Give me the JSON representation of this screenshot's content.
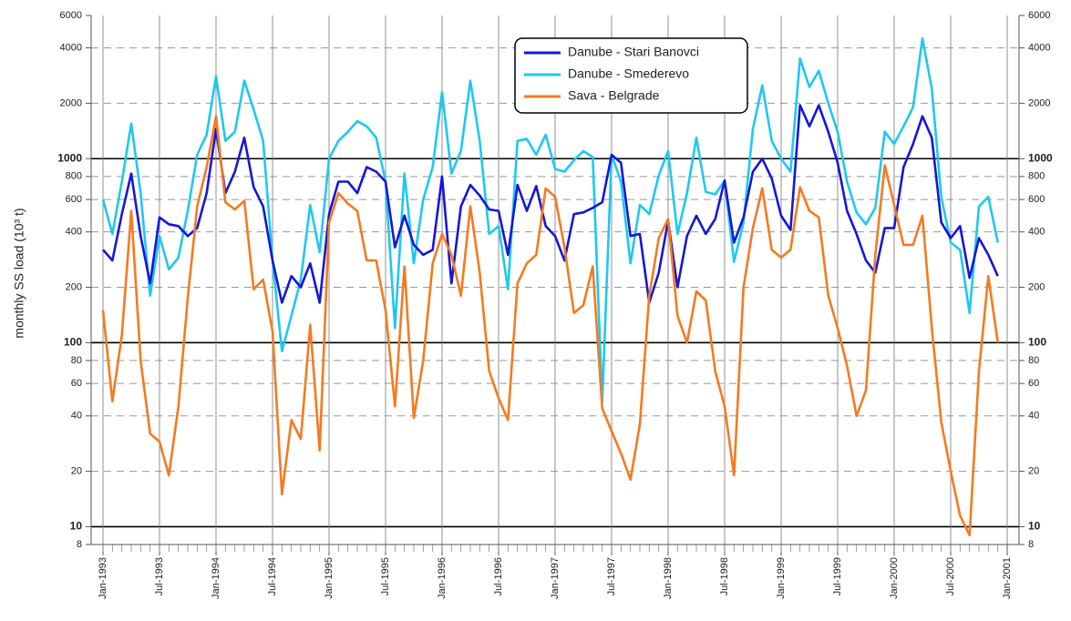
{
  "chart_data": {
    "type": "line",
    "y_label": "monthly SS load (10³ t)",
    "log_scale": true,
    "grid": true,
    "legend_position": "top",
    "x": [
      "1993-01",
      "1993-02",
      "1993-03",
      "1993-04",
      "1993-05",
      "1993-06",
      "1993-07",
      "1993-08",
      "1993-09",
      "1993-10",
      "1993-11",
      "1993-12",
      "1994-01",
      "1994-02",
      "1994-03",
      "1994-04",
      "1994-05",
      "1994-06",
      "1994-07",
      "1994-08",
      "1994-09",
      "1994-10",
      "1994-11",
      "1994-12",
      "1995-01",
      "1995-02",
      "1995-03",
      "1995-04",
      "1995-05",
      "1995-06",
      "1995-07",
      "1995-08",
      "1995-09",
      "1995-10",
      "1995-11",
      "1995-12",
      "1996-01",
      "1996-02",
      "1996-03",
      "1996-04",
      "1996-05",
      "1996-06",
      "1996-07",
      "1996-08",
      "1996-09",
      "1996-10",
      "1996-11",
      "1996-12",
      "1997-01",
      "1997-02",
      "1997-03",
      "1997-04",
      "1997-05",
      "1997-06",
      "1997-07",
      "1997-08",
      "1997-09",
      "1997-10",
      "1997-11",
      "1997-12",
      "1998-01",
      "1998-02",
      "1998-03",
      "1998-04",
      "1998-05",
      "1998-06",
      "1998-07",
      "1998-08",
      "1998-09",
      "1998-10",
      "1998-11",
      "1998-12",
      "1999-01",
      "1999-02",
      "1999-03",
      "1999-04",
      "1999-05",
      "1999-06",
      "1999-07",
      "1999-08",
      "1999-09",
      "1999-10",
      "1999-11",
      "1999-12",
      "2000-01",
      "2000-02",
      "2000-03",
      "2000-04",
      "2000-05",
      "2000-06",
      "2000-07",
      "2000-08",
      "2000-09",
      "2000-10",
      "2000-11",
      "2000-12"
    ],
    "xticks": [
      {
        "value": "1993-01",
        "label": "Jan-1993"
      },
      {
        "value": "1993-07",
        "label": "Jul-1993"
      },
      {
        "value": "1994-01",
        "label": "Jan-1994"
      },
      {
        "value": "1994-07",
        "label": "Jul-1994"
      },
      {
        "value": "1995-01",
        "label": "Jan-1995"
      },
      {
        "value": "1995-07",
        "label": "Jul-1995"
      },
      {
        "value": "1996-01",
        "label": "Jan-1996"
      },
      {
        "value": "1996-07",
        "label": "Jul-1996"
      },
      {
        "value": "1997-01",
        "label": "Jan-1997"
      },
      {
        "value": "1997-07",
        "label": "Jul-1997"
      },
      {
        "value": "1998-01",
        "label": "Jan-1998"
      },
      {
        "value": "1998-07",
        "label": "Jul-1998"
      },
      {
        "value": "1999-01",
        "label": "Jan-1999"
      },
      {
        "value": "1999-07",
        "label": "Jul-1999"
      },
      {
        "value": "2000-01",
        "label": "Jan-2000"
      },
      {
        "value": "2000-07",
        "label": "Jul-2000"
      },
      {
        "value": "2001-01",
        "label": "Jan-2001"
      }
    ],
    "ylim": [
      8,
      6000
    ],
    "yticks": [
      8,
      10,
      20,
      40,
      60,
      80,
      100,
      200,
      400,
      600,
      800,
      1000,
      2000,
      4000,
      6000
    ],
    "series": [
      {
        "name": "Danube - Stari Banovci",
        "color": "#1616d8",
        "values": [
          320,
          280,
          500,
          830,
          380,
          210,
          480,
          440,
          430,
          380,
          420,
          650,
          1450,
          650,
          850,
          1300,
          700,
          550,
          280,
          165,
          230,
          200,
          270,
          165,
          500,
          750,
          750,
          650,
          900,
          850,
          750,
          330,
          490,
          340,
          300,
          320,
          800,
          210,
          550,
          720,
          630,
          530,
          520,
          300,
          720,
          520,
          710,
          430,
          380,
          280,
          500,
          510,
          540,
          580,
          1050,
          950,
          380,
          390,
          165,
          240,
          460,
          200,
          380,
          490,
          390,
          470,
          760,
          350,
          480,
          850,
          1000,
          780,
          490,
          410,
          1950,
          1500,
          1950,
          1400,
          950,
          520,
          390,
          280,
          240,
          420,
          420,
          900,
          1200,
          1700,
          1300,
          450,
          370,
          430,
          225,
          370,
          300,
          230
        ]
      },
      {
        "name": "Danube - Smederevo",
        "color": "#1ec8f0",
        "values": [
          600,
          390,
          750,
          1550,
          650,
          180,
          380,
          250,
          290,
          520,
          1050,
          1350,
          2800,
          1250,
          1400,
          2650,
          1850,
          1250,
          280,
          90,
          140,
          220,
          560,
          310,
          1000,
          1250,
          1400,
          1600,
          1500,
          1300,
          750,
          120,
          830,
          270,
          600,
          900,
          2300,
          830,
          1100,
          2650,
          1250,
          390,
          430,
          195,
          1250,
          1280,
          1050,
          1350,
          880,
          850,
          980,
          1100,
          1020,
          48,
          1050,
          750,
          270,
          560,
          500,
          810,
          1100,
          390,
          650,
          1300,
          660,
          640,
          760,
          275,
          450,
          1450,
          2500,
          1250,
          1000,
          850,
          3500,
          2450,
          3000,
          2000,
          1400,
          750,
          510,
          440,
          540,
          1400,
          1200,
          1500,
          1900,
          4500,
          2400,
          620,
          350,
          320,
          145,
          550,
          620,
          350
        ]
      },
      {
        "name": "Sava - Belgrade",
        "color": "#f57a20",
        "values": [
          150,
          48,
          110,
          520,
          80,
          32,
          29,
          19,
          45,
          175,
          550,
          900,
          1700,
          580,
          530,
          590,
          195,
          220,
          115,
          15,
          38,
          30,
          125,
          26,
          450,
          650,
          570,
          520,
          280,
          280,
          150,
          45,
          260,
          39,
          80,
          270,
          390,
          300,
          180,
          550,
          240,
          70,
          50,
          38,
          210,
          270,
          300,
          690,
          620,
          330,
          145,
          160,
          260,
          44,
          33,
          25,
          18,
          36,
          180,
          370,
          470,
          140,
          100,
          190,
          170,
          70,
          45,
          19,
          200,
          420,
          690,
          320,
          290,
          320,
          700,
          520,
          480,
          180,
          120,
          75,
          40,
          55,
          300,
          920,
          560,
          340,
          340,
          490,
          120,
          37,
          20,
          11.5,
          9,
          70,
          230,
          100
        ]
      }
    ]
  }
}
